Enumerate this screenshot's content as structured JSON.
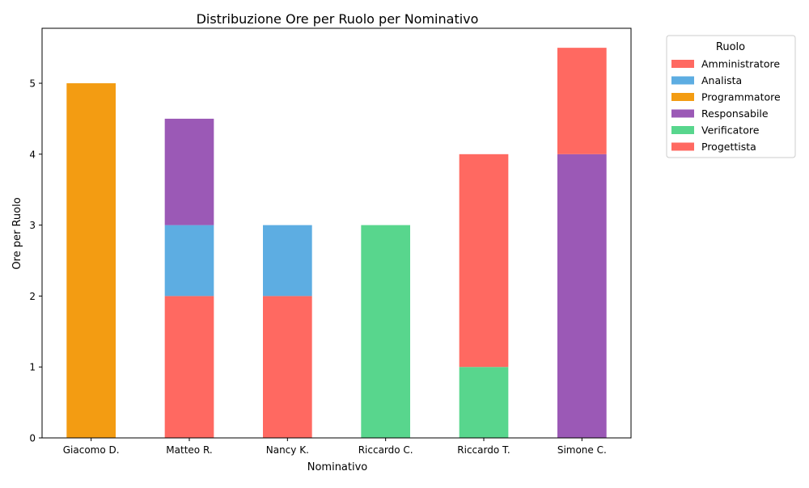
{
  "chart_data": {
    "type": "bar",
    "stacked": true,
    "title": "Distribuzione Ore per Ruolo per Nominativo",
    "xlabel": "Nominativo",
    "ylabel": "Ore per Ruolo",
    "categories": [
      "Giacomo D.",
      "Matteo R.",
      "Nancy K.",
      "Riccardo C.",
      "Riccardo T.",
      "Simone C."
    ],
    "ylim": [
      0,
      5.775
    ],
    "yticks": [
      0,
      1,
      2,
      3,
      4,
      5
    ],
    "grid": false,
    "legend": {
      "title": "Ruolo",
      "placement": "outside-right"
    },
    "series": [
      {
        "name": "Amministratore",
        "color": "#ff6961",
        "values": [
          0,
          2,
          2,
          0,
          0,
          0
        ]
      },
      {
        "name": "Analista",
        "color": "#5dade2",
        "values": [
          0,
          1,
          1,
          0,
          0,
          0
        ]
      },
      {
        "name": "Programmatore",
        "color": "#f39c12",
        "values": [
          5,
          0,
          0,
          0,
          0,
          0
        ]
      },
      {
        "name": "Responsabile",
        "color": "#9b59b6",
        "values": [
          0,
          1.5,
          0,
          0,
          0,
          4
        ]
      },
      {
        "name": "Verificatore",
        "color": "#58d68d",
        "values": [
          0,
          0,
          0,
          3,
          1,
          0
        ]
      },
      {
        "name": "Progettista",
        "color": "#ff6961",
        "values": [
          0,
          0,
          0,
          0,
          3,
          1.5
        ]
      }
    ]
  }
}
